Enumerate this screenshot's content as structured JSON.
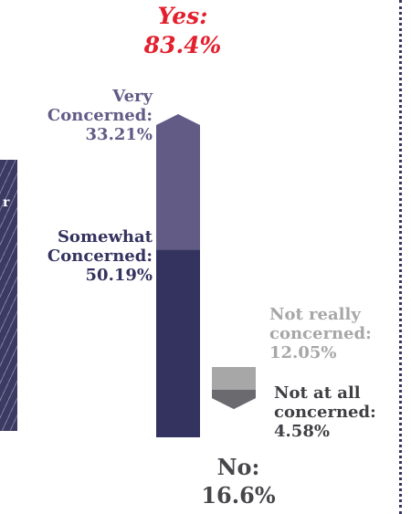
{
  "chart_data": {
    "type": "bar",
    "subtype": "stacked",
    "categories": [
      "Yes",
      "No"
    ],
    "totals": [
      {
        "label": "Yes:",
        "value_text": "83.4%",
        "value": 83.4,
        "color": "#e3202e"
      },
      {
        "label": "No:",
        "value_text": "16.6%",
        "value": 16.6,
        "color": "#47474b"
      }
    ],
    "series": [
      {
        "name": "Very Concerned",
        "category": "Yes",
        "value": 33.21,
        "lines": [
          "Very",
          "Concerned:",
          "33.21%"
        ],
        "color": "#615b86"
      },
      {
        "name": "Somewhat Concerned",
        "category": "Yes",
        "value": 50.19,
        "lines": [
          "Somewhat",
          "Concerned:",
          "50.19%"
        ],
        "color": "#34335f"
      },
      {
        "name": "Not really concerned",
        "category": "No",
        "value": 12.05,
        "lines": [
          "Not really",
          "concerned:",
          "12.05%"
        ],
        "color": "#a7a7a7"
      },
      {
        "name": "Not at all concerned",
        "category": "No",
        "value": 4.58,
        "lines": [
          "Not at all",
          "concerned:",
          "4.58%"
        ],
        "color": "#6b6b6f"
      }
    ],
    "arrows": {
      "yes": "up",
      "no": "down"
    },
    "grid": false
  },
  "side_panel": {
    "fragment": "r",
    "color": "#3b3a63"
  },
  "divider": {
    "style": "dotted",
    "color": "#34345e"
  }
}
